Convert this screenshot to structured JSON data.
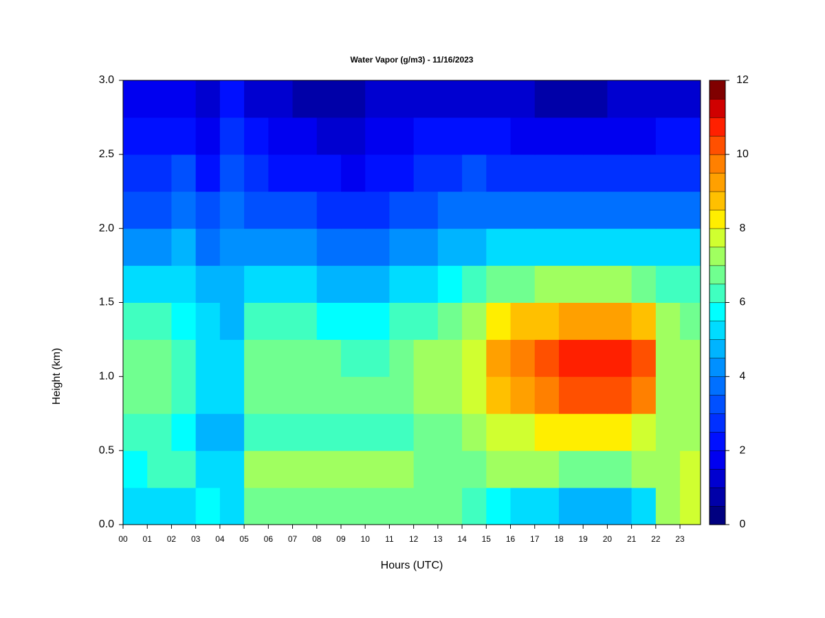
{
  "chart_data": {
    "type": "heatmap",
    "title": "Water Vapor (g/m3) - 11/16/2023",
    "xlabel": "Hours (UTC)",
    "ylabel": "Height (km)",
    "x": [
      0,
      1,
      2,
      3,
      4,
      5,
      6,
      7,
      8,
      9,
      10,
      11,
      12,
      13,
      14,
      15,
      16,
      17,
      18,
      19,
      20,
      21,
      22,
      23
    ],
    "y": [
      0,
      0.25,
      0.5,
      0.75,
      1,
      1.25,
      1.5,
      1.75,
      2,
      2.25,
      2.5,
      2.75
    ],
    "z": [
      [
        5,
        5,
        5,
        5.5,
        5,
        6.5,
        6.5,
        6.5,
        6.5,
        6.5,
        6.5,
        6.5,
        6.5,
        6.5,
        6,
        5.5,
        5,
        5,
        4.5,
        4.5,
        4.5,
        5,
        7,
        7.5
      ],
      [
        5.5,
        6,
        6,
        5,
        5,
        7,
        7,
        7,
        7,
        7,
        7,
        7,
        6.5,
        6.5,
        6.5,
        7,
        7,
        7,
        6.5,
        6.5,
        6.5,
        7,
        7,
        7.5
      ],
      [
        6,
        6,
        5.5,
        4.5,
        4.5,
        6,
        6,
        6,
        6,
        6,
        6,
        6,
        6.5,
        6.5,
        7,
        7.5,
        7.5,
        8,
        8,
        8,
        8,
        7.5,
        7,
        7
      ],
      [
        6.5,
        6.5,
        6,
        5,
        5,
        6.5,
        6.5,
        6.5,
        6.5,
        6.5,
        6.5,
        6.5,
        7,
        7,
        7.5,
        8.5,
        9,
        9.5,
        10,
        10,
        10,
        9.5,
        7,
        7
      ],
      [
        6.5,
        6.5,
        6,
        5,
        5,
        6.5,
        6.5,
        6.5,
        6.5,
        6,
        6,
        6.5,
        7,
        7,
        7.5,
        9,
        9.5,
        10,
        10.5,
        10.5,
        10.5,
        10,
        7,
        7
      ],
      [
        6,
        6,
        5.5,
        5,
        4.5,
        6,
        6,
        6,
        5.5,
        5.5,
        5.5,
        6,
        6,
        6.5,
        7,
        8,
        8.5,
        8.5,
        9,
        9,
        9,
        8.5,
        7,
        6.5
      ],
      [
        5,
        5,
        5,
        4.5,
        4.5,
        5,
        5,
        5,
        4.5,
        4.5,
        4.5,
        5,
        5,
        5.5,
        6,
        6.5,
        6.5,
        7,
        7,
        7,
        7,
        6.5,
        6,
        6
      ],
      [
        4,
        4,
        4.5,
        3.5,
        4,
        4,
        4,
        4,
        3.5,
        3.5,
        3.5,
        4,
        4,
        4.5,
        4.5,
        5,
        5,
        5,
        5,
        5,
        5,
        5,
        5,
        5
      ],
      [
        3,
        3,
        3.5,
        3,
        3.5,
        3,
        3,
        3,
        2.5,
        2.5,
        2.5,
        3,
        3,
        3.5,
        3.5,
        3.5,
        3.5,
        3.5,
        3.5,
        3.5,
        3.5,
        3.5,
        3.5,
        3.5
      ],
      [
        2.5,
        2.5,
        3,
        2,
        3,
        2.5,
        2,
        2,
        2,
        1.5,
        2,
        2,
        2.5,
        2.5,
        3,
        2.5,
        2.5,
        2.5,
        2.5,
        2.5,
        2.5,
        2.5,
        2.5,
        2.5
      ],
      [
        2,
        2,
        2,
        1.5,
        2.5,
        2,
        1.5,
        1.5,
        1,
        1,
        1.5,
        1.5,
        2,
        2,
        2,
        2,
        1.5,
        1.5,
        1.5,
        1.5,
        1.5,
        1.5,
        2,
        2
      ],
      [
        1.5,
        1.5,
        1.5,
        1,
        2,
        1,
        1,
        0.5,
        0.5,
        0.5,
        1,
        1,
        1,
        1,
        1,
        1,
        1,
        0.5,
        0.5,
        0.5,
        1,
        1,
        1,
        1
      ]
    ],
    "xlim": [
      0,
      23.85
    ],
    "xticks": [
      {
        "value": 0,
        "label": "00"
      },
      {
        "value": 1,
        "label": "01"
      },
      {
        "value": 2,
        "label": "02"
      },
      {
        "value": 3,
        "label": "03"
      },
      {
        "value": 4,
        "label": "04"
      },
      {
        "value": 5,
        "label": "05"
      },
      {
        "value": 6,
        "label": "06"
      },
      {
        "value": 7,
        "label": "07"
      },
      {
        "value": 8,
        "label": "08"
      },
      {
        "value": 9,
        "label": "09"
      },
      {
        "value": 10,
        "label": "10"
      },
      {
        "value": 11,
        "label": "11"
      },
      {
        "value": 12,
        "label": "12"
      },
      {
        "value": 13,
        "label": "13"
      },
      {
        "value": 14,
        "label": "14"
      },
      {
        "value": 15,
        "label": "15"
      },
      {
        "value": 16,
        "label": "16"
      },
      {
        "value": 17,
        "label": "17"
      },
      {
        "value": 18,
        "label": "18"
      },
      {
        "value": 19,
        "label": "19"
      },
      {
        "value": 20,
        "label": "20"
      },
      {
        "value": 21,
        "label": "21"
      },
      {
        "value": 22,
        "label": "22"
      },
      {
        "value": 23,
        "label": "23"
      }
    ],
    "ylim": [
      0,
      3
    ],
    "yticks": [
      {
        "value": 0,
        "label": "0.0"
      },
      {
        "value": 0.5,
        "label": "0.5"
      },
      {
        "value": 1,
        "label": "1.0"
      },
      {
        "value": 1.5,
        "label": "1.5"
      },
      {
        "value": 2,
        "label": "2.0"
      },
      {
        "value": 2.5,
        "label": "2.5"
      },
      {
        "value": 3,
        "label": "3.0"
      }
    ],
    "zlim": [
      0,
      12
    ],
    "zticks": [
      0,
      2,
      4,
      6,
      8,
      10,
      12
    ],
    "colors": [
      "#000080",
      "#0000a8",
      "#0000d0",
      "#0000f0",
      "#0010ff",
      "#0030ff",
      "#0050ff",
      "#0070ff",
      "#0090ff",
      "#00b4ff",
      "#00dcff",
      "#00ffff",
      "#40ffc0",
      "#70ff90",
      "#a0ff60",
      "#d0ff30",
      "#ffee00",
      "#ffc000",
      "#ffa000",
      "#ff8000",
      "#ff5000",
      "#ff2000",
      "#d00000",
      "#800000"
    ]
  }
}
